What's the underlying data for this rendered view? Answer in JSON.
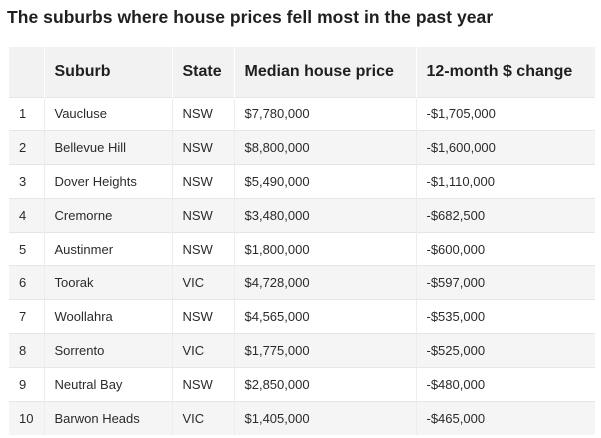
{
  "title": "The suburbs where house prices fell most in the past year",
  "table": {
    "headers": [
      "",
      "Suburb",
      "State",
      "Median house price",
      "12-month $ change"
    ],
    "rows": [
      [
        "1",
        "Vaucluse",
        "NSW",
        "$7,780,000",
        "-$1,705,000"
      ],
      [
        "2",
        "Bellevue Hill",
        "NSW",
        "$8,800,000",
        "-$1,600,000"
      ],
      [
        "3",
        "Dover Heights",
        "NSW",
        "$5,490,000",
        "-$1,110,000"
      ],
      [
        "4",
        "Cremorne",
        "NSW",
        "$3,480,000",
        "-$682,500"
      ],
      [
        "5",
        "Austinmer",
        "NSW",
        "$1,800,000",
        "-$600,000"
      ],
      [
        "6",
        "Toorak",
        "VIC",
        "$4,728,000",
        "-$597,000"
      ],
      [
        "7",
        "Woollahra",
        "NSW",
        "$4,565,000",
        "-$535,000"
      ],
      [
        "8",
        "Sorrento",
        "VIC",
        "$1,775,000",
        "-$525,000"
      ],
      [
        "9",
        "Neutral Bay",
        "NSW",
        "$2,850,000",
        "-$480,000"
      ],
      [
        "10",
        "Barwon Heads",
        "VIC",
        "$1,405,000",
        "-$465,000"
      ]
    ]
  }
}
